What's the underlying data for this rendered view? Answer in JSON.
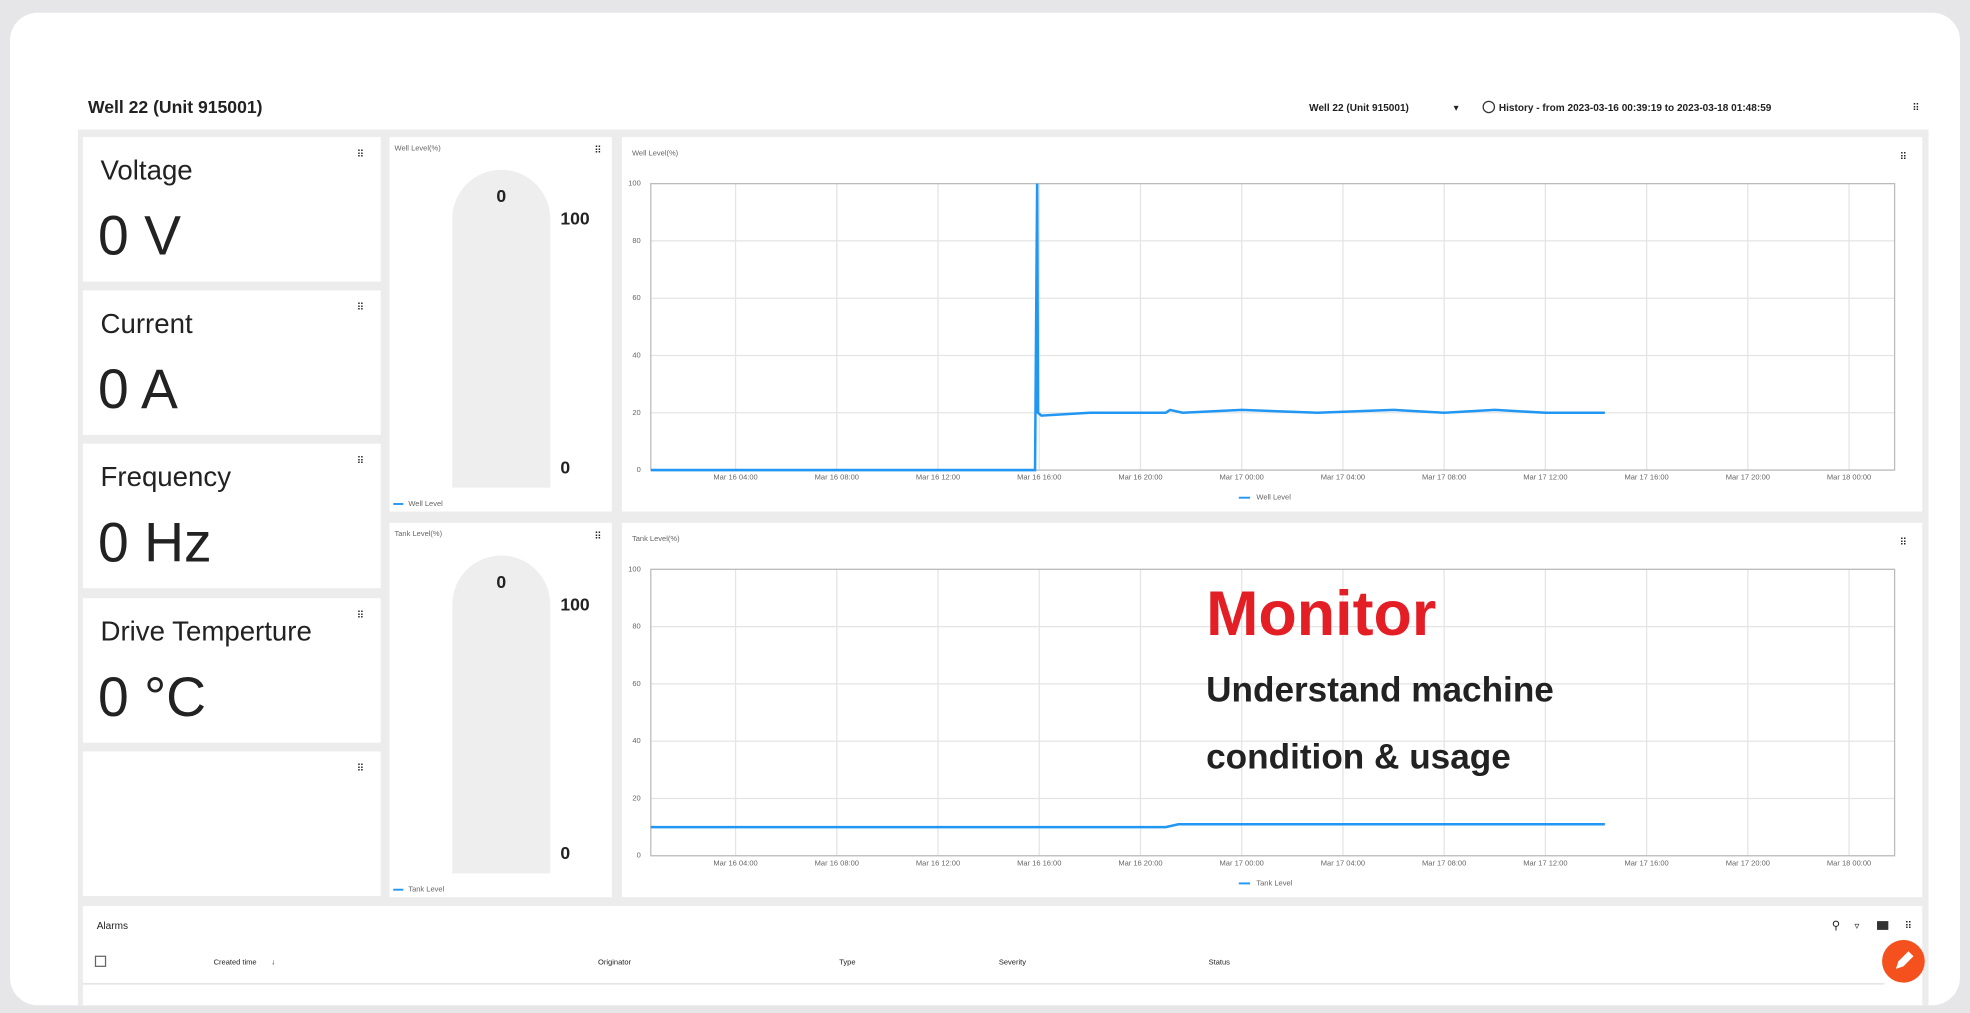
{
  "header": {
    "title": "Well 22 (Unit 915001)",
    "entity_selector": "Well 22 (Unit 915001)",
    "history": "History - from 2023-03-16 00:39:19 to 2023-03-18 01:48:59"
  },
  "cards": [
    {
      "label": "Voltage",
      "value": "0 V"
    },
    {
      "label": "Current",
      "value": "0 A"
    },
    {
      "label": "Frequency",
      "value": "0 Hz"
    },
    {
      "label": "Drive Temperture",
      "value": "0 °C"
    }
  ],
  "gauges": [
    {
      "title": "Well Level(%)",
      "value": 0,
      "min": 0,
      "max": 100,
      "legend": "Well Level",
      "color": "#2196f3"
    },
    {
      "title": "Tank Level(%)",
      "value": 0,
      "min": 0,
      "max": 100,
      "legend": "Tank Level",
      "color": "#2196f3"
    }
  ],
  "chart_data": [
    {
      "type": "line",
      "title": "Well Level(%)",
      "x": [
        "Mar 16 00:39",
        "Mar 16 15:50",
        "Mar 16 15:55",
        "Mar 16 15:57",
        "Mar 16 16:05",
        "Mar 16 18:00",
        "Mar 16 21:00",
        "Mar 16 21:10",
        "Mar 16 21:40",
        "Mar 17 00:00",
        "Mar 17 03:00",
        "Mar 17 06:00",
        "Mar 17 08:00",
        "Mar 17 10:00",
        "Mar 17 12:00",
        "Mar 17 14:21"
      ],
      "series": [
        {
          "name": "Well Level",
          "color": "#2196f3",
          "values": [
            0,
            0,
            100,
            20,
            19,
            20,
            20,
            21,
            20,
            21,
            20,
            21,
            20,
            21,
            20,
            20
          ]
        }
      ],
      "xlim": [
        "Mar 16 00:39",
        "Mar 18 01:48"
      ],
      "xticks": [
        "Mar 16 04:00",
        "Mar 16 08:00",
        "Mar 16 12:00",
        "Mar 16 16:00",
        "Mar 16 20:00",
        "Mar 17 00:00",
        "Mar 17 04:00",
        "Mar 17 08:00",
        "Mar 17 12:00",
        "Mar 17 16:00",
        "Mar 17 20:00",
        "Mar 18 00:00"
      ],
      "ylim": [
        0,
        100
      ],
      "yticks": [
        0,
        20,
        40,
        60,
        80,
        100
      ],
      "grid": true
    },
    {
      "type": "line",
      "title": "Tank Level(%)",
      "x": [
        "Mar 16 00:39",
        "Mar 16 12:00",
        "Mar 16 21:00",
        "Mar 16 21:30",
        "Mar 17 00:00",
        "Mar 17 04:00",
        "Mar 17 08:00",
        "Mar 17 12:00",
        "Mar 17 14:21"
      ],
      "series": [
        {
          "name": "Tank Level",
          "color": "#2196f3",
          "values": [
            10,
            10,
            10,
            11,
            11,
            11,
            11,
            11,
            11
          ]
        }
      ],
      "xlim": [
        "Mar 16 00:39",
        "Mar 18 01:48"
      ],
      "xticks": [
        "Mar 16 04:00",
        "Mar 16 08:00",
        "Mar 16 12:00",
        "Mar 16 16:00",
        "Mar 16 20:00",
        "Mar 17 00:00",
        "Mar 17 04:00",
        "Mar 17 08:00",
        "Mar 17 12:00",
        "Mar 17 16:00",
        "Mar 17 20:00",
        "Mar 18 00:00"
      ],
      "ylim": [
        0,
        100
      ],
      "yticks": [
        0,
        20,
        40,
        60,
        80,
        100
      ],
      "grid": true
    }
  ],
  "overlay": {
    "title": "Monitor",
    "lines": [
      "Understand machine",
      "condition & usage"
    ]
  },
  "alarms": {
    "title": "Alarms",
    "columns": [
      "Created time",
      "Originator",
      "Type",
      "Severity",
      "Status"
    ]
  }
}
